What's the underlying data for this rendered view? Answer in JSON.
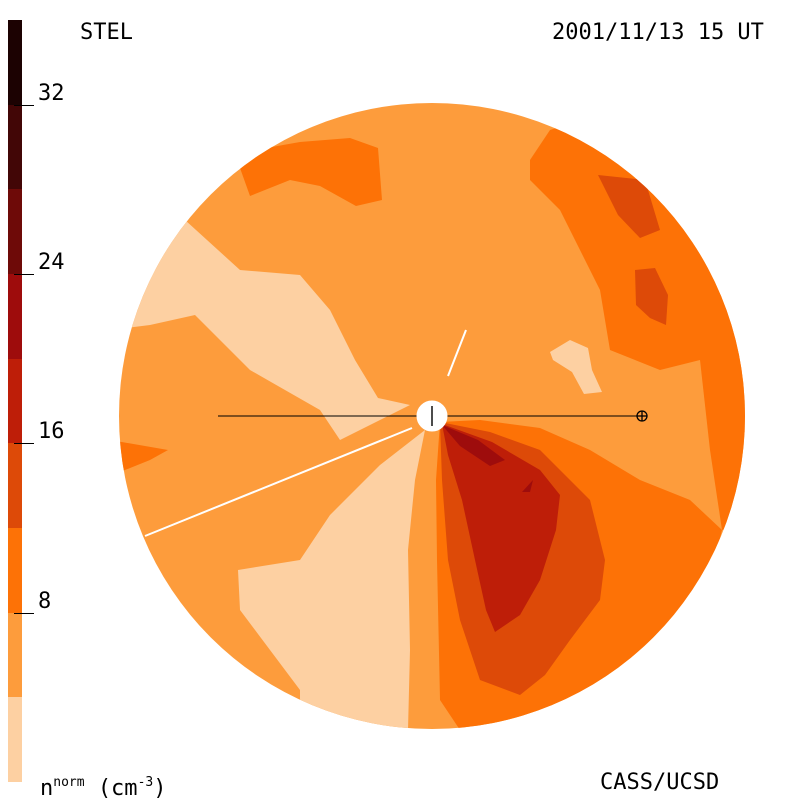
{
  "header": {
    "left_label": "STEL",
    "right_label": "2001/11/13 15 UT"
  },
  "footer": {
    "quantity": "n",
    "quantity_sup": "norm",
    "unit": "(cm",
    "unit_sup": "-3",
    "unit_close": ")",
    "credit": "CASS/UCSD"
  },
  "colorbar": {
    "levels": [
      {
        "from": 0,
        "to": 4,
        "color": "#fdd0a2"
      },
      {
        "from": 4,
        "to": 8,
        "color": "#fd9c3c"
      },
      {
        "from": 8,
        "to": 12,
        "color": "#fd7206"
      },
      {
        "from": 12,
        "to": 16,
        "color": "#dd4a08"
      },
      {
        "from": 16,
        "to": 20,
        "color": "#be1e08"
      },
      {
        "from": 20,
        "to": 24,
        "color": "#9e0c0c"
      },
      {
        "from": 24,
        "to": 28,
        "color": "#6e0a08"
      },
      {
        "from": 28,
        "to": 32,
        "color": "#420606"
      },
      {
        "from": 32,
        "to": 36,
        "color": "#1c0202"
      }
    ],
    "ticks": [
      {
        "value": 8,
        "label": "8"
      },
      {
        "value": 16,
        "label": "16"
      },
      {
        "value": 24,
        "label": "24"
      },
      {
        "value": 32,
        "label": "32"
      }
    ]
  },
  "colors": {
    "c0": "#fdd0a2",
    "c1": "#fd9c3c",
    "c2": "#fd7206",
    "c3": "#dd4a08",
    "c4": "#be1e08",
    "c5": "#9e0c0c"
  }
}
